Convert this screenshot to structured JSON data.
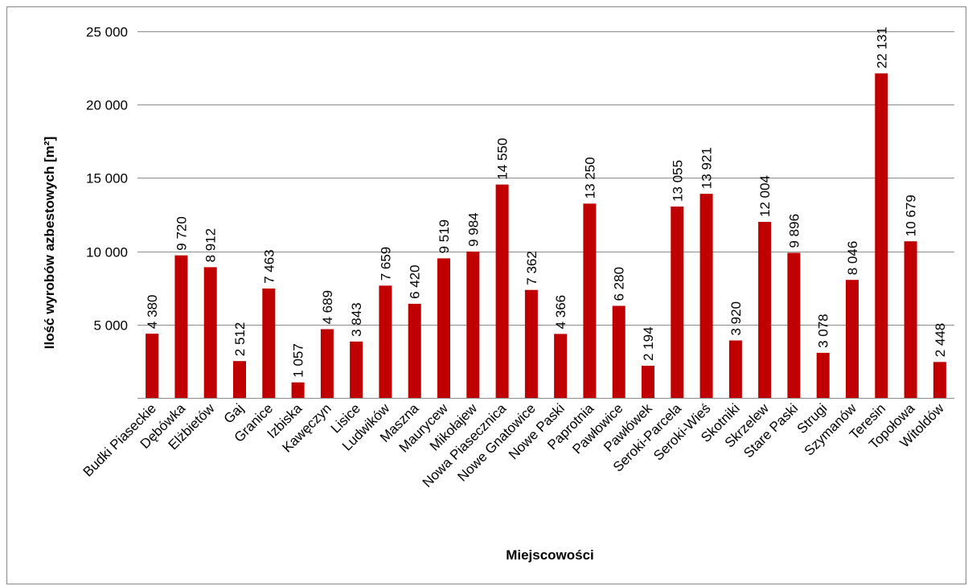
{
  "chart_data": {
    "type": "bar",
    "xlabel": "Miejscowości",
    "ylabel": "Ilość wyrobów azbestowych [m²]",
    "ylim": [
      0,
      25000
    ],
    "yticks": [
      0,
      5000,
      10000,
      15000,
      20000,
      25000
    ],
    "ytick_labels": [
      "",
      "5 000",
      "10 000",
      "15 000",
      "20 000",
      "25 000"
    ],
    "grid": true,
    "legend": "none",
    "bar_color": "#C00000",
    "categories": [
      "Budki Piaseckie",
      "Dębówka",
      "Elżbietów",
      "Gaj",
      "Granice",
      "Izbiska",
      "Kawęczyn",
      "Lisice",
      "Ludwików",
      "Maszna",
      "Maurycew",
      "Mikołajew",
      "Nowa Piasecznica",
      "Nowe Gnatowice",
      "Nowe Paski",
      "Paprotnia",
      "Pawłowice",
      "Pawłówek",
      "Seroki-Parcela",
      "Seroki-Wieś",
      "Skotniki",
      "Skrzelew",
      "Stare Paski",
      "Strugi",
      "Szymanów",
      "Teresin",
      "Topołowa",
      "Witoldów"
    ],
    "values": [
      4380,
      9720,
      8912,
      2512,
      7463,
      1057,
      4689,
      3843,
      7659,
      6420,
      9519,
      9984,
      14550,
      7362,
      4366,
      13250,
      6280,
      2194,
      13055,
      13921,
      3920,
      12004,
      9896,
      3078,
      8046,
      22131,
      10679,
      2448
    ],
    "value_labels": [
      "4 380",
      "9 720",
      "8 912",
      "2 512",
      "7 463",
      "1 057",
      "4 689",
      "3 843",
      "7 659",
      "6 420",
      "9 519",
      "9 984",
      "14 550",
      "7 362",
      "4 366",
      "13 250",
      "6 280",
      "2 194",
      "13 055",
      "13 921",
      "3 920",
      "12 004",
      "9 896",
      "3 078",
      "8 046",
      "22 131",
      "10 679",
      "2 448"
    ]
  }
}
